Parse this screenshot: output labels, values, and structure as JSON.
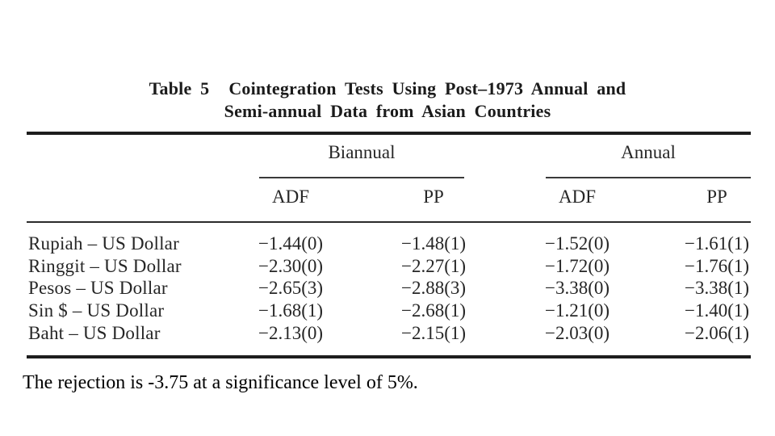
{
  "colors": {
    "background": "#ffffff",
    "text": "#262626",
    "rule": "#1d1d1d"
  },
  "table": {
    "label": "Table 5",
    "title_line1": "Cointegration Tests Using Post–1973 Annual and",
    "title_line2": "Semi-annual Data from Asian Countries",
    "col_groups": [
      {
        "label": "Biannual"
      },
      {
        "label": "Annual"
      }
    ],
    "sub_headers": [
      "ADF",
      "PP",
      "ADF",
      "PP"
    ],
    "rows": [
      {
        "label": "Rupiah – US Dollar",
        "biannual_adf": "−1.44(0)",
        "biannual_pp": "−1.48(1)",
        "annual_adf": "−1.52(0)",
        "annual_pp": "−1.61(1)"
      },
      {
        "label": "Ringgit – US Dollar",
        "biannual_adf": "−2.30(0)",
        "biannual_pp": "−2.27(1)",
        "annual_adf": "−1.72(0)",
        "annual_pp": "−1.76(1)"
      },
      {
        "label": "Pesos – US Dollar",
        "biannual_adf": "−2.65(3)",
        "biannual_pp": "−2.88(3)",
        "annual_adf": "−3.38(0)",
        "annual_pp": "−3.38(1)"
      },
      {
        "label": "Sin $ – US Dollar",
        "biannual_adf": "−1.68(1)",
        "biannual_pp": "−2.68(1)",
        "annual_adf": "−1.21(0)",
        "annual_pp": "−1.40(1)"
      },
      {
        "label": "Baht – US Dollar",
        "biannual_adf": "−2.13(0)",
        "biannual_pp": "−2.15(1)",
        "annual_adf": "−2.03(0)",
        "annual_pp": "−2.06(1)"
      }
    ]
  },
  "note": "The rejection is -3.75 at a significance level of 5%."
}
